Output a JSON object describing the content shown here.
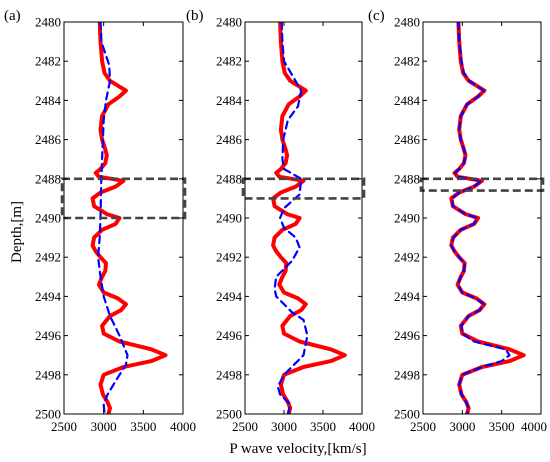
{
  "chart_data": [
    {
      "type": "line",
      "panel_label": "(a)",
      "xlim": [
        2500,
        4000
      ],
      "ylim": [
        2500,
        2480
      ],
      "y_reversed": true,
      "series": [
        {
          "color": "#ff0000",
          "style": "solid",
          "x": [
            2950,
            2960,
            2980,
            3010,
            3080,
            3200,
            3280,
            3200,
            3060,
            2980,
            2960,
            2980,
            3020,
            3040,
            3020,
            2960,
            2900,
            2940,
            3100,
            3250,
            3150,
            2960,
            2860,
            2880,
            3040,
            3200,
            3150,
            2980,
            2880,
            2860,
            2900,
            2960,
            3030,
            3020,
            2980,
            2940,
            3000,
            3180,
            3280,
            3220,
            3080,
            2980,
            3000,
            3200,
            3600,
            3780,
            3600,
            3250,
            3000,
            2960,
            2990,
            3050,
            3080,
            3060
          ],
          "y": [
            2480,
            2481,
            2482,
            2482.6,
            2483,
            2483.3,
            2483.5,
            2483.8,
            2484.2,
            2484.8,
            2485.5,
            2486,
            2486.5,
            2486.8,
            2487.2,
            2487.5,
            2487.7,
            2487.9,
            2488,
            2488.1,
            2488.4,
            2488.7,
            2489,
            2489.4,
            2489.8,
            2490,
            2490.3,
            2490.6,
            2491,
            2491.4,
            2491.7,
            2492,
            2492.3,
            2492.7,
            2493,
            2493.4,
            2493.8,
            2494.1,
            2494.4,
            2494.7,
            2495,
            2495.5,
            2495.9,
            2496.3,
            2496.7,
            2497,
            2497.3,
            2497.6,
            2498,
            2498.5,
            2499,
            2499.4,
            2499.7,
            2500
          ]
        },
        {
          "color": "#0000ff",
          "style": "dashed",
          "x": [
            2960,
            2970,
            3070,
            3080,
            3030,
            3000,
            2990,
            2980,
            2970,
            2965,
            2960,
            2950,
            2930,
            2960,
            3000,
            3080,
            3200,
            3300,
            3280,
            3200,
            3050,
            3000,
            3010
          ],
          "y": [
            2480,
            2481,
            2482.2,
            2483,
            2484,
            2485,
            2486,
            2487,
            2488,
            2489,
            2490,
            2491,
            2492,
            2493,
            2494,
            2495,
            2496,
            2497,
            2497.5,
            2498,
            2499,
            2499.5,
            2500
          ]
        }
      ],
      "highlight_box": {
        "y_top": 2488,
        "y_bottom": 2490
      }
    },
    {
      "type": "line",
      "panel_label": "(b)",
      "xlim": [
        2500,
        4000
      ],
      "ylim": [
        2500,
        2480
      ],
      "y_reversed": true,
      "series": [
        {
          "color": "#ff0000",
          "style": "solid",
          "x": [
            2950,
            2960,
            2980,
            3010,
            3080,
            3200,
            3280,
            3200,
            3060,
            2980,
            2960,
            2980,
            3020,
            3040,
            3020,
            2960,
            2900,
            2940,
            3100,
            3250,
            3150,
            2960,
            2860,
            2880,
            3040,
            3200,
            3150,
            2980,
            2880,
            2860,
            2900,
            2960,
            3030,
            3020,
            2980,
            2940,
            3000,
            3180,
            3280,
            3220,
            3080,
            2980,
            3000,
            3200,
            3600,
            3780,
            3600,
            3250,
            3000,
            2960,
            2990,
            3050,
            3080,
            3060
          ],
          "y": [
            2480,
            2481,
            2482,
            2482.6,
            2483,
            2483.3,
            2483.5,
            2483.8,
            2484.2,
            2484.8,
            2485.5,
            2486,
            2486.5,
            2486.8,
            2487.2,
            2487.5,
            2487.7,
            2487.9,
            2488,
            2488.1,
            2488.4,
            2488.7,
            2489,
            2489.4,
            2489.8,
            2490,
            2490.3,
            2490.6,
            2491,
            2491.4,
            2491.7,
            2492,
            2492.3,
            2492.7,
            2493,
            2493.4,
            2493.8,
            2494.1,
            2494.4,
            2494.7,
            2495,
            2495.5,
            2495.9,
            2496.3,
            2496.7,
            2497,
            2497.3,
            2497.6,
            2498,
            2498.5,
            2499,
            2499.4,
            2499.7,
            2500
          ]
        },
        {
          "color": "#0000ff",
          "style": "dashed",
          "x": [
            2970,
            2980,
            3000,
            3220,
            3180,
            3050,
            2990,
            2980,
            3000,
            3220,
            3200,
            3000,
            2950,
            3000,
            3150,
            3200,
            3100,
            2900,
            2880,
            2900,
            3000,
            3100,
            3250,
            3300,
            3250,
            3000,
            2920,
            2950,
            3080,
            3050
          ],
          "y": [
            2480,
            2481,
            2482,
            2483.5,
            2484.3,
            2485,
            2486,
            2487,
            2487.5,
            2488,
            2488.8,
            2489.5,
            2490,
            2490.5,
            2491,
            2491.5,
            2492.2,
            2493,
            2493.6,
            2494,
            2494.4,
            2494.8,
            2495.2,
            2496,
            2497,
            2498,
            2498.6,
            2499,
            2499.5,
            2500
          ]
        }
      ],
      "highlight_box": {
        "y_top": 2488,
        "y_bottom": 2489
      }
    },
    {
      "type": "line",
      "panel_label": "(c)",
      "xlim": [
        2500,
        4000
      ],
      "ylim": [
        2500,
        2480
      ],
      "y_reversed": true,
      "series": [
        {
          "color": "#ff0000",
          "style": "solid",
          "x": [
            2950,
            2960,
            2980,
            3010,
            3080,
            3200,
            3280,
            3200,
            3060,
            2980,
            2960,
            2980,
            3020,
            3040,
            3020,
            2960,
            2900,
            2940,
            3100,
            3250,
            3150,
            2960,
            2860,
            2880,
            3040,
            3200,
            3150,
            2980,
            2880,
            2860,
            2900,
            2960,
            3030,
            3020,
            2980,
            2940,
            3000,
            3180,
            3280,
            3220,
            3080,
            2980,
            3000,
            3200,
            3600,
            3780,
            3600,
            3250,
            3000,
            2960,
            2990,
            3050,
            3080,
            3060
          ],
          "y": [
            2480,
            2481,
            2482,
            2482.6,
            2483,
            2483.3,
            2483.5,
            2483.8,
            2484.2,
            2484.8,
            2485.5,
            2486,
            2486.5,
            2486.8,
            2487.2,
            2487.5,
            2487.7,
            2487.9,
            2488,
            2488.1,
            2488.4,
            2488.7,
            2489,
            2489.4,
            2489.8,
            2490,
            2490.3,
            2490.6,
            2491,
            2491.4,
            2491.7,
            2492,
            2492.3,
            2492.7,
            2493,
            2493.4,
            2493.8,
            2494.1,
            2494.4,
            2494.7,
            2495,
            2495.5,
            2495.9,
            2496.3,
            2496.7,
            2497,
            2497.3,
            2497.6,
            2498,
            2498.5,
            2499,
            2499.4,
            2499.7,
            2500
          ]
        },
        {
          "color": "#0000ff",
          "style": "dashed",
          "x": [
            2950,
            2960,
            2990,
            3020,
            3090,
            3200,
            3270,
            3200,
            3060,
            2980,
            2960,
            2980,
            3020,
            3040,
            3020,
            2960,
            2910,
            2940,
            3100,
            3240,
            3150,
            2960,
            2870,
            2880,
            3040,
            3190,
            3150,
            2980,
            2890,
            2860,
            2900,
            2960,
            3030,
            3020,
            2980,
            2940,
            3000,
            3170,
            3270,
            3220,
            3080,
            2990,
            3000,
            3150,
            3550,
            3600,
            3500,
            3250,
            3000,
            2960,
            2990,
            3050,
            3080,
            3060
          ],
          "y": [
            2480,
            2481,
            2482,
            2482.6,
            2483,
            2483.3,
            2483.5,
            2483.8,
            2484.2,
            2484.8,
            2485.5,
            2486,
            2486.5,
            2486.8,
            2487.2,
            2487.5,
            2487.7,
            2487.9,
            2488,
            2488.1,
            2488.4,
            2488.7,
            2489,
            2489.4,
            2489.8,
            2490,
            2490.3,
            2490.6,
            2491,
            2491.4,
            2491.7,
            2492,
            2492.3,
            2492.7,
            2493,
            2493.4,
            2493.8,
            2494.1,
            2494.4,
            2494.7,
            2495,
            2495.5,
            2495.9,
            2496.3,
            2496.7,
            2497,
            2497.3,
            2497.6,
            2498,
            2498.5,
            2499,
            2499.4,
            2499.7,
            2500
          ]
        }
      ],
      "highlight_box": {
        "y_top": 2488,
        "y_bottom": 2488.6
      }
    }
  ],
  "ylabel": "Depth,[m]",
  "xlabel": "P wave velocity,[km/s]",
  "y_ticks": [
    2480,
    2482,
    2484,
    2486,
    2488,
    2490,
    2492,
    2494,
    2496,
    2498,
    2500
  ],
  "x_ticks": [
    2500,
    3000,
    3500,
    4000
  ],
  "colors": {
    "red": "#ff0000",
    "blue": "#0000ff",
    "box": "#444444"
  }
}
